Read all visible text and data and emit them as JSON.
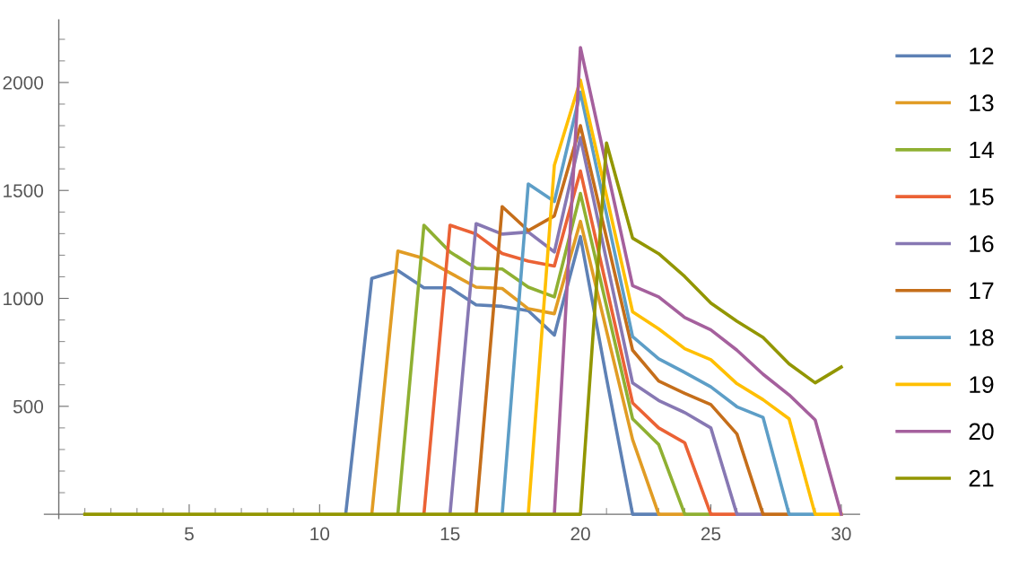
{
  "chart_data": {
    "type": "line",
    "x": [
      1,
      2,
      3,
      4,
      5,
      6,
      7,
      8,
      9,
      10,
      11,
      12,
      13,
      14,
      15,
      16,
      17,
      18,
      19,
      20,
      21,
      22,
      23,
      24,
      25,
      26,
      27,
      28,
      29,
      30
    ],
    "series": [
      {
        "name": "12",
        "color": "#5e81b5",
        "values": [
          null,
          null,
          null,
          null,
          null,
          null,
          null,
          null,
          null,
          null,
          0,
          1093,
          1129,
          1049,
          1049,
          970,
          963,
          943,
          830,
          1286,
          630,
          0,
          0,
          null,
          null,
          null,
          null,
          null,
          null,
          null
        ]
      },
      {
        "name": "13",
        "color": "#e19c24",
        "values": [
          null,
          null,
          null,
          null,
          null,
          null,
          null,
          null,
          null,
          null,
          null,
          0,
          1219,
          1185,
          1118,
          1052,
          1046,
          952,
          929,
          1357,
          850,
          346,
          0,
          0,
          null,
          null,
          null,
          null,
          null,
          null
        ]
      },
      {
        "name": "14",
        "color": "#8fb032",
        "values": [
          null,
          null,
          null,
          null,
          null,
          null,
          null,
          null,
          null,
          null,
          null,
          null,
          0,
          1339,
          1215,
          1139,
          1136,
          1052,
          1007,
          1486,
          964,
          442,
          323,
          0,
          0,
          null,
          null,
          null,
          null,
          null
        ]
      },
      {
        "name": "15",
        "color": "#eb6235",
        "values": [
          null,
          null,
          null,
          null,
          null,
          null,
          null,
          null,
          null,
          null,
          null,
          null,
          null,
          0,
          1339,
          1298,
          1208,
          1173,
          1150,
          1590,
          1053,
          516,
          400,
          331,
          0,
          0,
          null,
          null,
          null,
          null
        ]
      },
      {
        "name": "16",
        "color": "#8778b3",
        "values": [
          null,
          null,
          null,
          null,
          null,
          null,
          null,
          null,
          null,
          null,
          null,
          null,
          null,
          null,
          0,
          1346,
          1298,
          1307,
          1215,
          1745,
          1176,
          608,
          527,
          471,
          400,
          0,
          0,
          null,
          null,
          null
        ]
      },
      {
        "name": "17",
        "color": "#c56e1a",
        "values": [
          null,
          null,
          null,
          null,
          null,
          null,
          null,
          null,
          null,
          null,
          null,
          null,
          null,
          null,
          null,
          0,
          1425,
          1314,
          1382,
          1800,
          1280,
          760,
          617,
          560,
          508,
          372,
          0,
          0,
          null,
          null
        ]
      },
      {
        "name": "18",
        "color": "#5d9ec7",
        "values": [
          null,
          null,
          null,
          null,
          null,
          null,
          null,
          null,
          null,
          null,
          null,
          null,
          null,
          null,
          null,
          null,
          0,
          1530,
          1449,
          1955,
          1389,
          823,
          720,
          657,
          590,
          498,
          449,
          0,
          0,
          null
        ]
      },
      {
        "name": "19",
        "color": "#ffbf00",
        "values": [
          null,
          null,
          null,
          null,
          null,
          null,
          null,
          null,
          null,
          null,
          null,
          null,
          null,
          null,
          null,
          null,
          null,
          0,
          1616,
          2011,
          1475,
          938,
          859,
          767,
          716,
          605,
          531,
          442,
          0,
          0
        ]
      },
      {
        "name": "20",
        "color": "#a5609d",
        "values": [
          null,
          null,
          null,
          null,
          null,
          null,
          null,
          null,
          null,
          null,
          null,
          null,
          null,
          null,
          null,
          null,
          null,
          null,
          0,
          2162,
          1610,
          1059,
          1007,
          911,
          854,
          760,
          649,
          553,
          437,
          0
        ]
      },
      {
        "name": "21",
        "color": "#929600",
        "values": [
          0,
          0,
          0,
          0,
          0,
          0,
          0,
          0,
          0,
          0,
          0,
          0,
          0,
          0,
          0,
          0,
          0,
          0,
          0,
          0,
          1720,
          1279,
          1207,
          1101,
          978,
          894,
          819,
          697,
          609,
          682
        ]
      }
    ],
    "xlim": [
      -0.55,
      30.7
    ],
    "ylim": [
      -20,
      2290
    ],
    "xticks": [
      {
        "value": 1,
        "label": null
      },
      {
        "value": 2,
        "label": null
      },
      {
        "value": 3,
        "label": null
      },
      {
        "value": 4,
        "label": null
      },
      5,
      {
        "value": 6,
        "label": null
      },
      {
        "value": 7,
        "label": null
      },
      {
        "value": 8,
        "label": null
      },
      {
        "value": 9,
        "label": null
      },
      10,
      {
        "value": 11,
        "label": null
      },
      {
        "value": 12,
        "label": null
      },
      {
        "value": 13,
        "label": null
      },
      {
        "value": 14,
        "label": null
      },
      15,
      {
        "value": 16,
        "label": null
      },
      {
        "value": 17,
        "label": null
      },
      {
        "value": 18,
        "label": null
      },
      {
        "value": 19,
        "label": null
      },
      20,
      {
        "value": 21,
        "label": null
      },
      {
        "value": 22,
        "label": null
      },
      {
        "value": 23,
        "label": null
      },
      {
        "value": 24,
        "label": null
      },
      25,
      {
        "value": 26,
        "label": null
      },
      {
        "value": 27,
        "label": null
      },
      {
        "value": 28,
        "label": null
      },
      {
        "value": 29,
        "label": null
      },
      30
    ],
    "yticks": [
      {
        "value": 100,
        "label": null
      },
      {
        "value": 200,
        "label": null
      },
      {
        "value": 300,
        "label": null
      },
      {
        "value": 400,
        "label": null
      },
      500,
      {
        "value": 600,
        "label": null
      },
      {
        "value": 700,
        "label": null
      },
      {
        "value": 800,
        "label": null
      },
      {
        "value": 900,
        "label": null
      },
      1000,
      {
        "value": 1100,
        "label": null
      },
      {
        "value": 1200,
        "label": null
      },
      {
        "value": 1300,
        "label": null
      },
      {
        "value": 1400,
        "label": null
      },
      1500,
      {
        "value": 1600,
        "label": null
      },
      {
        "value": 1700,
        "label": null
      },
      {
        "value": 1800,
        "label": null
      },
      {
        "value": 1900,
        "label": null
      },
      2000,
      {
        "value": 2100,
        "label": null
      },
      {
        "value": 2200,
        "label": null
      }
    ],
    "grid": false,
    "legend": "right",
    "marker": "none",
    "line_style": "solid"
  }
}
